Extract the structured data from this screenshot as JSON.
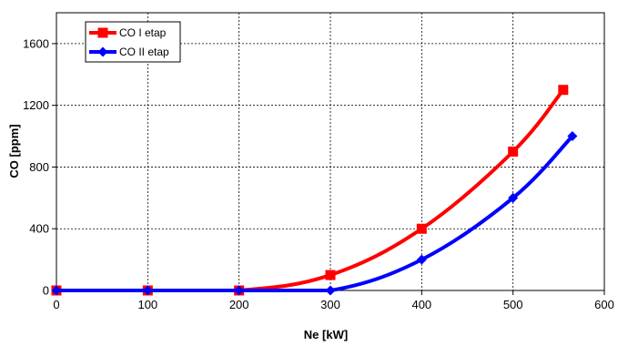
{
  "chart_data": {
    "type": "line",
    "xlabel": "Ne [kW]",
    "ylabel": "CO [ppm]",
    "xlim": [
      0,
      600
    ],
    "ylim": [
      0,
      1800
    ],
    "xticks": [
      "0",
      "100",
      "200",
      "300",
      "400",
      "500",
      "600"
    ],
    "yticks": [
      "0",
      "400",
      "800",
      "1200",
      "1600"
    ],
    "grid": true,
    "legend_position": "top-left",
    "series": [
      {
        "name": "CO I etap",
        "color": "#ff0000",
        "marker": "square",
        "x": [
          0,
          100,
          200,
          300,
          400,
          500,
          555
        ],
        "y": [
          0,
          0,
          0,
          100,
          400,
          900,
          1300
        ]
      },
      {
        "name": "CO II etap",
        "color": "#0000ff",
        "marker": "diamond",
        "x": [
          0,
          100,
          200,
          300,
          400,
          500,
          565
        ],
        "y": [
          0,
          0,
          0,
          0,
          200,
          600,
          1000
        ]
      }
    ]
  }
}
